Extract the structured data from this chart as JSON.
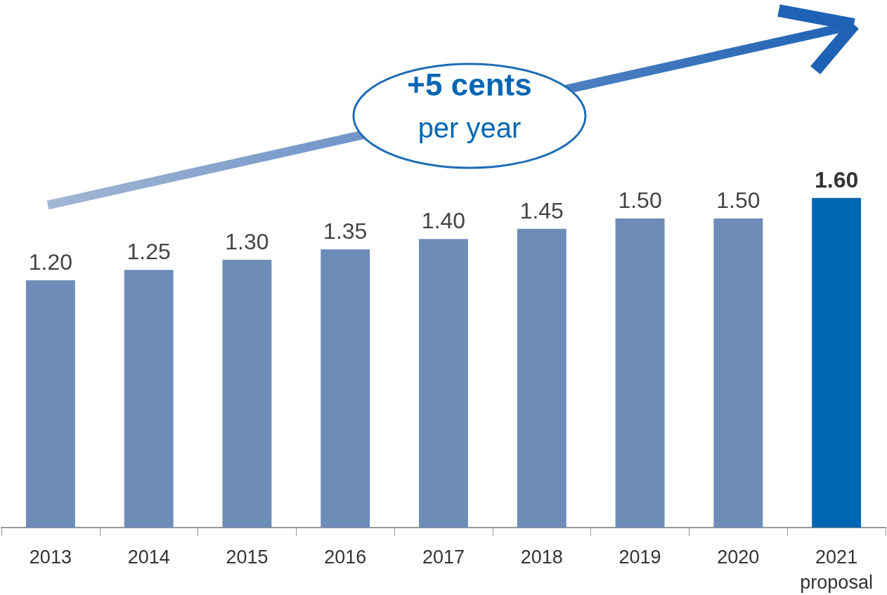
{
  "chart_data": {
    "type": "bar",
    "categories": [
      "2013",
      "2014",
      "2015",
      "2016",
      "2017",
      "2018",
      "2019",
      "2020",
      "2021\nproposal"
    ],
    "values": [
      1.2,
      1.25,
      1.3,
      1.35,
      1.4,
      1.45,
      1.5,
      1.5,
      1.6
    ],
    "value_labels": [
      "1.20",
      "1.25",
      "1.30",
      "1.35",
      "1.40",
      "1.45",
      "1.50",
      "1.50",
      "1.60"
    ],
    "colors": [
      "#6d8db8",
      "#6d8db8",
      "#6d8db8",
      "#6d8db8",
      "#6d8db8",
      "#6d8db8",
      "#6d8db8",
      "#6d8db8",
      "#0066b3"
    ],
    "annotations": [
      "+5 cents",
      "per year"
    ]
  }
}
